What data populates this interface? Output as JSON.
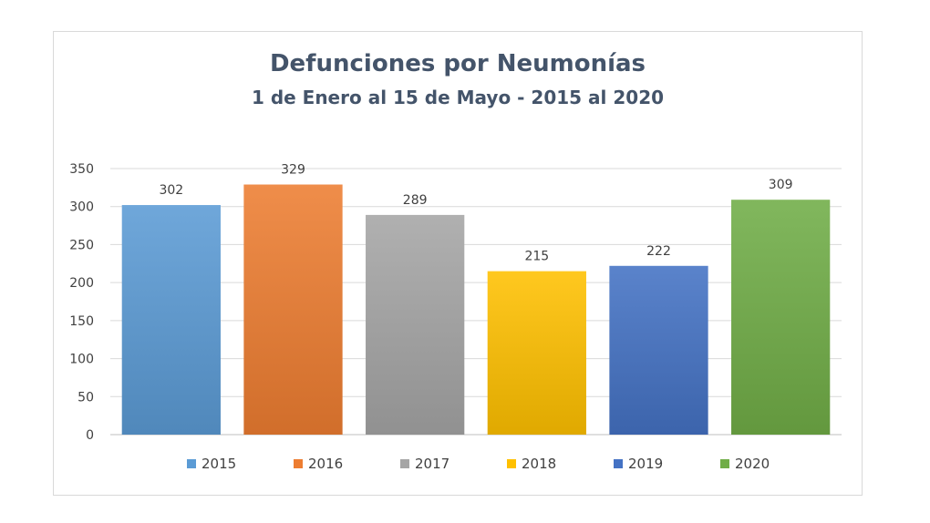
{
  "chart_data": {
    "type": "bar",
    "title": "Defunciones por Neumonías",
    "subtitle": "1 de Enero al 15 de Mayo - 2015 al 2020",
    "categories": [
      "2015",
      "2016",
      "2017",
      "2018",
      "2019",
      "2020"
    ],
    "values": [
      302,
      329,
      289,
      215,
      222,
      309
    ],
    "colors": [
      "#5b9bd5",
      "#ed7d31",
      "#a5a5a5",
      "#ffc000",
      "#4472c4",
      "#70ad47"
    ],
    "ylim": [
      0,
      350
    ],
    "yticks": [
      0,
      50,
      100,
      150,
      200,
      250,
      300,
      350
    ],
    "grid": true,
    "legend_position": "bottom"
  }
}
